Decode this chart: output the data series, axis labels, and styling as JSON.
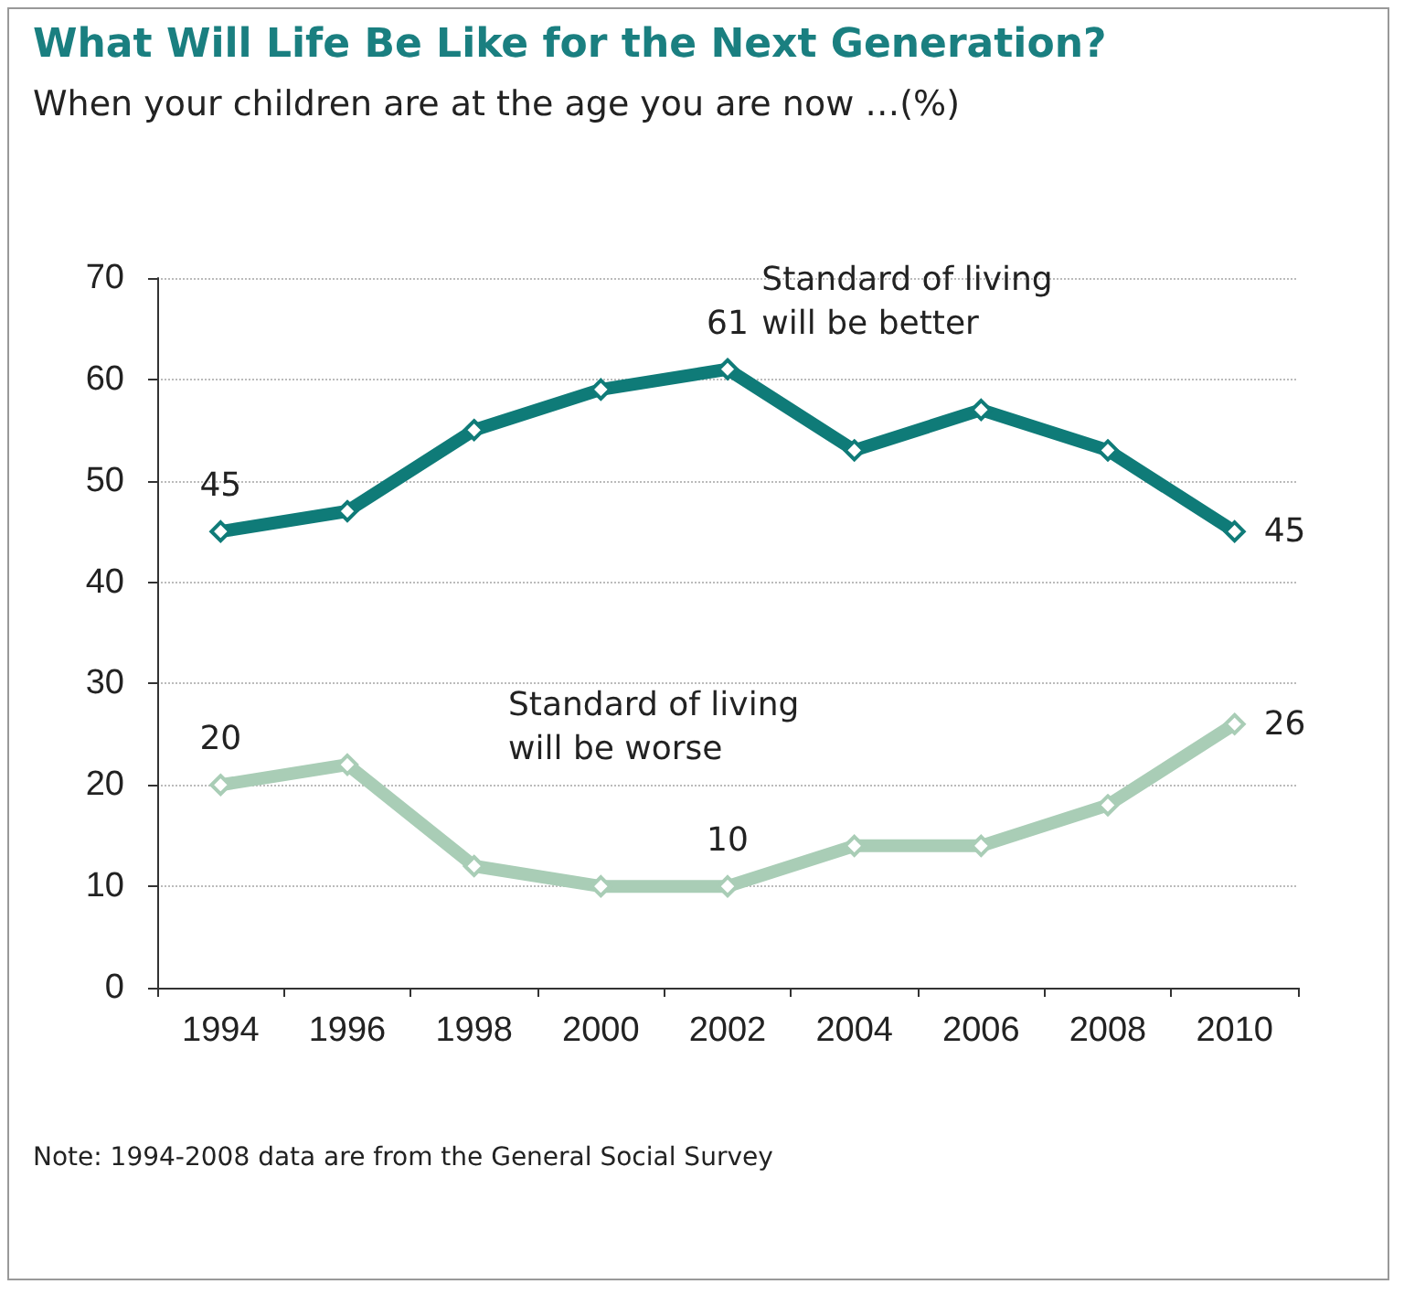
{
  "chart_data": {
    "type": "line",
    "title": "What Will Life Be Like for the Next Generation?",
    "subtitle": "When your children are at the age you are now …(%)",
    "categories": [
      "1994",
      "1996",
      "1998",
      "2000",
      "2002",
      "2004",
      "2006",
      "2008",
      "2010"
    ],
    "series": [
      {
        "name": "Standard of living will be better",
        "color": "#0f7b78",
        "values": [
          45,
          47,
          55,
          59,
          61,
          53,
          57,
          53,
          45
        ],
        "value_labels": [
          "45",
          null,
          null,
          null,
          "61",
          null,
          null,
          null,
          "45"
        ]
      },
      {
        "name": "Standard of living will be worse",
        "color": "#a9cdb6",
        "values": [
          20,
          22,
          12,
          10,
          10,
          14,
          14,
          18,
          26
        ],
        "value_labels": [
          "20",
          null,
          null,
          null,
          "10",
          null,
          null,
          null,
          "26"
        ]
      }
    ],
    "ylim": [
      0,
      70
    ],
    "yticks": [
      0,
      10,
      20,
      30,
      40,
      50,
      60,
      70
    ],
    "grid": "y",
    "marker": "diamond",
    "line_style": "solid",
    "legend": false,
    "annotations": [
      "Note: 1994-2008 data are from the General Social Survey"
    ]
  }
}
